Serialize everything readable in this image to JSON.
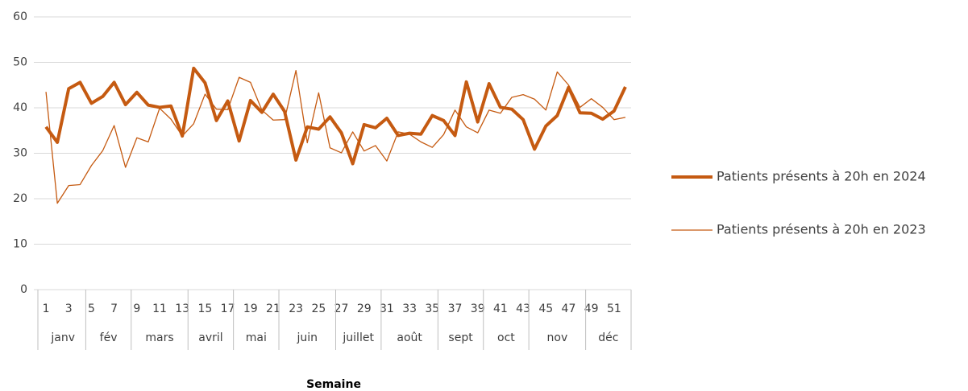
{
  "chart_data": {
    "type": "line",
    "x_label": "Semaine",
    "categories": [
      "1",
      null,
      "3",
      null,
      "5",
      null,
      "7",
      null,
      "9",
      null,
      "11",
      null,
      "13",
      null,
      "15",
      null,
      "17",
      null,
      "19",
      null,
      "21",
      null,
      "23",
      null,
      "25",
      null,
      "27",
      null,
      "29",
      null,
      "31",
      null,
      "33",
      null,
      "35",
      null,
      "37",
      null,
      "39",
      null,
      "41",
      null,
      "43",
      null,
      "45",
      null,
      "47",
      null,
      "49",
      null,
      "51",
      null
    ],
    "groups": [
      {
        "label": "janv",
        "weeks": 4
      },
      {
        "label": "fév",
        "weeks": 4
      },
      {
        "label": "mars",
        "weeks": 5
      },
      {
        "label": "avril",
        "weeks": 4
      },
      {
        "label": "mai",
        "weeks": 4
      },
      {
        "label": "juin",
        "weeks": 5
      },
      {
        "label": "juillet",
        "weeks": 4
      },
      {
        "label": "août",
        "weeks": 5
      },
      {
        "label": "sept",
        "weeks": 4
      },
      {
        "label": "oct",
        "weeks": 4
      },
      {
        "label": "nov",
        "weeks": 5
      },
      {
        "label": "déc",
        "weeks": 4
      }
    ],
    "series": [
      {
        "name": "Patients présents à 20h en 2024",
        "color": "#c55a11",
        "line_width": 4,
        "values": [
          35.8,
          32.4,
          44.2,
          45.6,
          41,
          42.5,
          45.6,
          40.7,
          43.4,
          40.6,
          40.1,
          40.4,
          33.8,
          48.7,
          45.5,
          37.2,
          41.5,
          32.7,
          41.6,
          39,
          43,
          39.2,
          28.5,
          35.8,
          35.3,
          38,
          34.5,
          27.7,
          36.3,
          35.6,
          37.7,
          33.9,
          34.4,
          34.2,
          38.3,
          37.2,
          33.9,
          45.7,
          36.9,
          45.3,
          40.1,
          39.7,
          37.4,
          30.9,
          36,
          38.3,
          44.5,
          38.9,
          38.8,
          37.5,
          39.3,
          44.6
        ]
      },
      {
        "name": "Patients présents à 20h en 2023",
        "color": "#c55a11",
        "line_width": 1.3,
        "values": [
          43.5,
          19,
          22.9,
          23.1,
          27.3,
          30.6,
          36.1,
          26.9,
          33.4,
          32.5,
          39.9,
          37.5,
          33.8,
          36.5,
          43,
          39.7,
          39.6,
          46.7,
          45.6,
          39.5,
          37.3,
          37.4,
          48.2,
          32.3,
          43.3,
          31.2,
          30.1,
          34.7,
          30.5,
          31.7,
          28.3,
          34.7,
          34.2,
          32.5,
          31.3,
          34.1,
          39.5,
          35.8,
          34.5,
          39.5,
          38.8,
          42.3,
          42.9,
          41.9,
          39.5,
          47.9,
          45,
          40.1,
          42,
          40.1,
          37.4,
          37.9
        ]
      }
    ],
    "ylim": [
      0,
      60
    ],
    "yticks": [
      0,
      10,
      20,
      30,
      40,
      50,
      60
    ],
    "grid": true,
    "legend": "right"
  }
}
